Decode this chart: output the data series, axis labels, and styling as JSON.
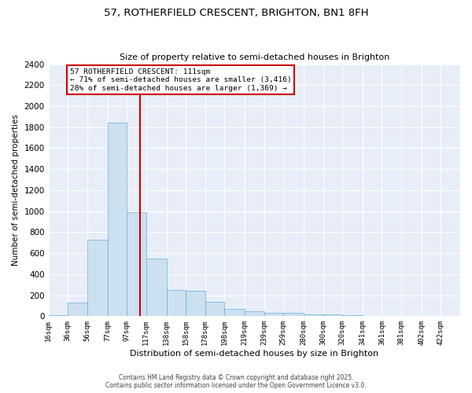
{
  "title": "57, ROTHERFIELD CRESCENT, BRIGHTON, BN1 8FH",
  "subtitle": "Size of property relative to semi-detached houses in Brighton",
  "xlabel": "Distribution of semi-detached houses by size in Brighton",
  "ylabel": "Number of semi-detached properties",
  "bin_labels": [
    "16sqm",
    "36sqm",
    "56sqm",
    "77sqm",
    "97sqm",
    "117sqm",
    "138sqm",
    "158sqm",
    "178sqm",
    "198sqm",
    "219sqm",
    "239sqm",
    "259sqm",
    "280sqm",
    "300sqm",
    "320sqm",
    "341sqm",
    "361sqm",
    "381sqm",
    "402sqm",
    "422sqm"
  ],
  "bar_heights": [
    10,
    130,
    730,
    1840,
    990,
    550,
    250,
    245,
    135,
    70,
    50,
    30,
    30,
    20,
    15,
    10,
    5,
    5,
    5,
    5,
    5
  ],
  "bar_color": "#cce0f0",
  "bar_edge_color": "#6baed6",
  "property_value": 111,
  "vline_color": "#cc0000",
  "annotation_box_color": "#cc0000",
  "annotation_line1": "57 ROTHERFIELD CRESCENT: 111sqm",
  "annotation_line2": "← 71% of semi-detached houses are smaller (3,416)",
  "annotation_line3": "28% of semi-detached houses are larger (1,369) →",
  "ylim": [
    0,
    2400
  ],
  "yticks": [
    0,
    200,
    400,
    600,
    800,
    1000,
    1200,
    1400,
    1600,
    1800,
    2000,
    2200,
    2400
  ],
  "bg_color": "#e8eef8",
  "footer_line1": "Contains HM Land Registry data © Crown copyright and database right 2025.",
  "footer_line2": "Contains public sector information licensed under the Open Government Licence v3.0."
}
